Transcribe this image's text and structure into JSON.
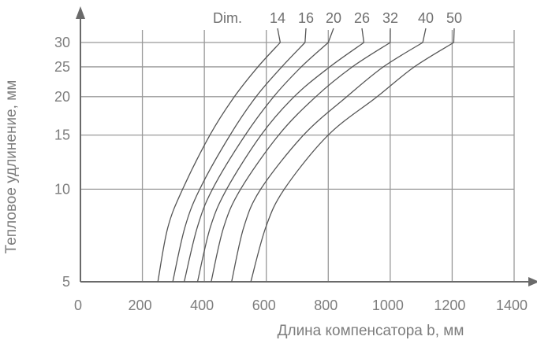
{
  "chart_data": {
    "type": "line",
    "xlabel": "Длина компенсатора b, мм",
    "ylabel": "Тепловое удлинение, мм",
    "xlim": [
      0,
      1400
    ],
    "ylim": [
      5,
      30
    ],
    "yscale": "log",
    "grid": true,
    "legend_prefix": "Dim.",
    "x_ticks": [
      0,
      200,
      400,
      600,
      800,
      1000,
      1200,
      1400
    ],
    "y_ticks": [
      5,
      10,
      15,
      20,
      25,
      30
    ],
    "series": [
      {
        "name": "14",
        "points": [
          [
            250,
            5
          ],
          [
            282,
            7.5
          ],
          [
            330,
            10
          ],
          [
            418,
            15
          ],
          [
            497,
            20
          ],
          [
            573,
            25
          ],
          [
            645,
            30
          ]
        ]
      },
      {
        "name": "16",
        "points": [
          [
            298,
            5
          ],
          [
            337,
            7.5
          ],
          [
            385,
            10
          ],
          [
            483,
            15
          ],
          [
            567,
            20
          ],
          [
            650,
            25
          ],
          [
            725,
            30
          ]
        ]
      },
      {
        "name": "20",
        "points": [
          [
            335,
            5
          ],
          [
            377,
            7.5
          ],
          [
            426,
            10
          ],
          [
            532,
            15
          ],
          [
            624,
            20
          ],
          [
            713,
            25
          ],
          [
            800,
            30
          ]
        ]
      },
      {
        "name": "26",
        "points": [
          [
            378,
            5
          ],
          [
            419,
            7.5
          ],
          [
            472,
            10
          ],
          [
            583,
            15
          ],
          [
            690,
            20
          ],
          [
            805,
            25
          ],
          [
            915,
            30
          ]
        ]
      },
      {
        "name": "32",
        "points": [
          [
            422,
            5
          ],
          [
            462,
            7.5
          ],
          [
            517,
            10
          ],
          [
            640,
            15
          ],
          [
            760,
            20
          ],
          [
            878,
            25
          ],
          [
            1000,
            30
          ]
        ]
      },
      {
        "name": "40",
        "points": [
          [
            488,
            5
          ],
          [
            527,
            7.5
          ],
          [
            582,
            10
          ],
          [
            720,
            15
          ],
          [
            860,
            20
          ],
          [
            978,
            25
          ],
          [
            1105,
            30
          ]
        ]
      },
      {
        "name": "50",
        "points": [
          [
            550,
            5
          ],
          [
            598,
            7.5
          ],
          [
            658,
            10
          ],
          [
            800,
            15
          ],
          [
            958,
            20
          ],
          [
            1078,
            25
          ],
          [
            1205,
            30
          ]
        ]
      }
    ]
  }
}
